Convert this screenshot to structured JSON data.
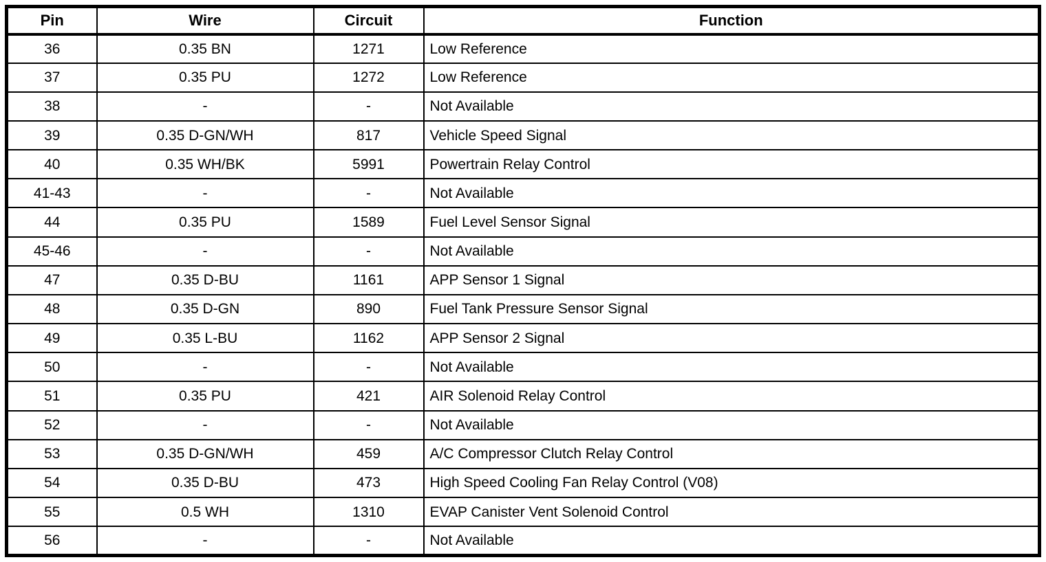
{
  "table": {
    "headers": {
      "pin": "Pin",
      "wire": "Wire",
      "circuit": "Circuit",
      "function": "Function"
    },
    "rows": [
      {
        "pin": "36",
        "wire": "0.35 BN",
        "circuit": "1271",
        "function": "Low Reference"
      },
      {
        "pin": "37",
        "wire": "0.35 PU",
        "circuit": "1272",
        "function": "Low Reference"
      },
      {
        "pin": "38",
        "wire": "-",
        "circuit": "-",
        "function": "Not Available"
      },
      {
        "pin": "39",
        "wire": "0.35 D-GN/WH",
        "circuit": "817",
        "function": "Vehicle Speed Signal"
      },
      {
        "pin": "40",
        "wire": "0.35 WH/BK",
        "circuit": "5991",
        "function": "Powertrain Relay Control"
      },
      {
        "pin": "41-43",
        "wire": "-",
        "circuit": "-",
        "function": "Not Available"
      },
      {
        "pin": "44",
        "wire": "0.35 PU",
        "circuit": "1589",
        "function": "Fuel Level Sensor Signal"
      },
      {
        "pin": "45-46",
        "wire": "-",
        "circuit": "-",
        "function": "Not Available"
      },
      {
        "pin": "47",
        "wire": "0.35 D-BU",
        "circuit": "1161",
        "function": "APP Sensor 1 Signal"
      },
      {
        "pin": "48",
        "wire": "0.35 D-GN",
        "circuit": "890",
        "function": "Fuel Tank Pressure Sensor Signal"
      },
      {
        "pin": "49",
        "wire": "0.35 L-BU",
        "circuit": "1162",
        "function": "APP Sensor 2 Signal"
      },
      {
        "pin": "50",
        "wire": "-",
        "circuit": "-",
        "function": "Not Available"
      },
      {
        "pin": "51",
        "wire": "0.35 PU",
        "circuit": "421",
        "function": "AIR Solenoid Relay Control"
      },
      {
        "pin": "52",
        "wire": "-",
        "circuit": "-",
        "function": "Not Available"
      },
      {
        "pin": "53",
        "wire": "0.35 D-GN/WH",
        "circuit": "459",
        "function": "A/C Compressor Clutch Relay Control"
      },
      {
        "pin": "54",
        "wire": "0.35 D-BU",
        "circuit": "473",
        "function": "High Speed Cooling Fan Relay Control (V08)"
      },
      {
        "pin": "55",
        "wire": "0.5 WH",
        "circuit": "1310",
        "function": "EVAP Canister Vent Solenoid Control"
      },
      {
        "pin": "56",
        "wire": "-",
        "circuit": "-",
        "function": "Not Available"
      }
    ]
  }
}
